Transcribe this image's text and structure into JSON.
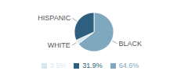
{
  "chart_data": {
    "type": "pie",
    "categories": [
      "BLACK",
      "WHITE",
      "HISPANIC"
    ],
    "values": [
      64.6,
      3.5,
      31.9
    ],
    "value_labels": [
      "64.6%",
      "3.5%",
      "31.9%"
    ],
    "colors": [
      "#7fa8bf",
      "#d8e8f0",
      "#2e5f7e"
    ],
    "legend": "bottom"
  }
}
